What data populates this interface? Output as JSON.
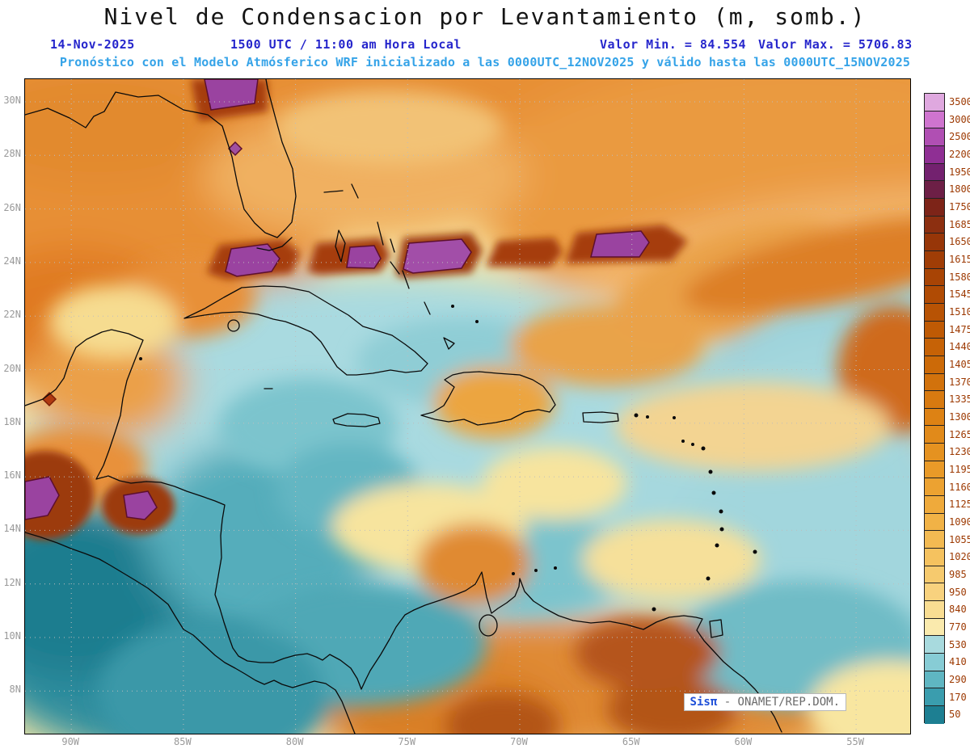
{
  "header": {
    "title": "Nivel de Condensacion por Levantamiento (m, somb.)",
    "date": "14-Nov-2025",
    "time": "1500 UTC / 11:00 am Hora Local",
    "min_label": "Valor Min. = 84.554",
    "max_label": "Valor Max. = 5706.83",
    "forecast": "Pronóstico con el Modelo Atmósferico WRF inicializado a las 0000UTC_12NOV2025 y válido hasta las  0000UTC_15NOV2025"
  },
  "watermark": {
    "brand": "Sisπ",
    "text": "- ONAMET/REP.DOM."
  },
  "colors": {
    "title_black": "#141414",
    "header_blue": "#2626cc",
    "forecast_blue": "#35a3e8",
    "colorbar_label": "#9c3800",
    "tick_gray": "#9a9a9a"
  },
  "chart_data": {
    "type": "heatmap",
    "title": "Nivel de Condensacion por Levantamiento (m, somb.)",
    "units": "m",
    "valid_date": "14-Nov-2025",
    "valid_time": "1500 UTC / 11:00 am Hora Local",
    "value_min": 84.554,
    "value_max": 5706.83,
    "model": "WRF",
    "initialized": "0000UTC_12NOV2025",
    "valid_until": "0000UTC_15NOV2025",
    "x_ticks": [
      "90W",
      "85W",
      "80W",
      "75W",
      "70W",
      "65W",
      "60W",
      "55W"
    ],
    "y_ticks": [
      "30N",
      "28N",
      "26N",
      "24N",
      "22N",
      "20N",
      "18N",
      "16N",
      "14N",
      "12N",
      "10N",
      "8N"
    ],
    "grid": true,
    "legend_position": "right",
    "colorbar": {
      "levels": [
        3500,
        3000,
        2500,
        2200,
        1950,
        1800,
        1750,
        1685,
        1650,
        1615,
        1580,
        1545,
        1510,
        1475,
        1440,
        1405,
        1370,
        1335,
        1300,
        1265,
        1230,
        1195,
        1160,
        1125,
        1090,
        1055,
        1020,
        985,
        950,
        840,
        770,
        530,
        410,
        290,
        170,
        50
      ],
      "colors": [
        "#dfa8df",
        "#cf74cf",
        "#b04fb3",
        "#8f2f94",
        "#73216f",
        "#6d1f46",
        "#7d2418",
        "#8c2f10",
        "#973608",
        "#a03d06",
        "#a84405",
        "#b04b04",
        "#b85304",
        "#bf5a04",
        "#c66206",
        "#cc6a08",
        "#d2720c",
        "#d87a10",
        "#dd8214",
        "#e18a1a",
        "#e59220",
        "#e99a28",
        "#eca231",
        "#efaa3b",
        "#f1b246",
        "#f3ba52",
        "#f5c25f",
        "#f6ca6e",
        "#f8d27e",
        "#f9dd92",
        "#faeaad",
        "#a8dade",
        "#87ccd5",
        "#5fb6c2",
        "#3a9dae",
        "#1d7f92"
      ]
    },
    "field_summary": {
      "high_band_24N": "dark orange-brown band with purple maxima along 24N-25N from 86W to 63W (Cuba north coast / Bahamas)",
      "low_region": "teal minima over western Caribbean, Nicaragua coast and eastern Pacific corner",
      "mid_region": "pale yellow / light cyan over central Caribbean, orange over Atlantic north of 23N and over Venezuela"
    }
  }
}
